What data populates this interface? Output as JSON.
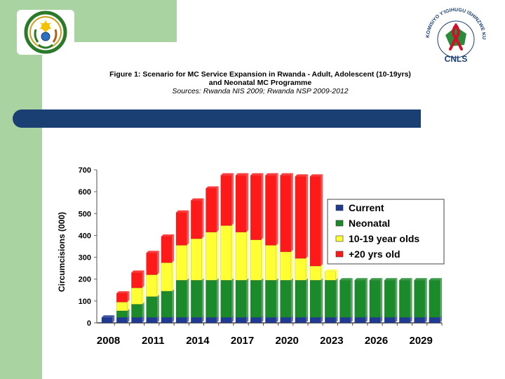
{
  "header": {
    "title_line1": "Figure 1: Scenario for MC Service Expansion in Rwanda - Adult, Adolescent (10-19yrs)",
    "title_line2": "and Neonatal MC Programme",
    "sources": "Sources: Rwanda NIS 2009; Rwanda NSP 2009-2012"
  },
  "logos": {
    "left": "rwanda-coat-of-arms",
    "right_text": "KOMISIYO Y'IGIHUGU ISHINZWE KURWANYA SIDA",
    "right_abbr": "CNLS"
  },
  "colors": {
    "current": "#1f3a93",
    "neonatal": "#1a8a2a",
    "adolescent": "#ffff33",
    "adult": "#ff1a1a",
    "band": "#1a3f73"
  },
  "chart_data": {
    "type": "bar",
    "stacked": true,
    "ylabel": "Circumcisions (000)",
    "ylim": [
      0,
      700
    ],
    "yticks": [
      0,
      100,
      200,
      300,
      400,
      500,
      600,
      700
    ],
    "xtick_labels": [
      "2008",
      "2011",
      "2014",
      "2017",
      "2020",
      "2023",
      "2026",
      "2029"
    ],
    "categories": [
      "2008",
      "2009",
      "2010",
      "2011",
      "2012",
      "2013",
      "2014",
      "2015",
      "2016",
      "2017",
      "2018",
      "2019",
      "2020",
      "2021",
      "2022",
      "2023",
      "2024",
      "2025",
      "2026",
      "2027",
      "2028",
      "2029",
      "2030"
    ],
    "legend_position": "right",
    "series": [
      {
        "name": "Current",
        "color": "#1f3a93",
        "values": [
          25,
          25,
          25,
          25,
          25,
          25,
          25,
          25,
          25,
          25,
          25,
          25,
          25,
          25,
          25,
          25,
          25,
          25,
          25,
          25,
          25,
          25,
          25
        ]
      },
      {
        "name": "Neonatal",
        "color": "#1a8a2a",
        "values": [
          0,
          30,
          60,
          95,
          120,
          170,
          170,
          170,
          170,
          170,
          170,
          170,
          170,
          170,
          170,
          170,
          170,
          170,
          170,
          170,
          170,
          170,
          170
        ]
      },
      {
        "name": "10-19 year olds",
        "color": "#ffff33",
        "values": [
          0,
          40,
          75,
          100,
          130,
          160,
          190,
          220,
          250,
          220,
          185,
          160,
          130,
          100,
          65,
          40,
          0,
          0,
          0,
          0,
          0,
          0,
          0
        ]
      },
      {
        "name": "+20 yrs old",
        "color": "#ff1a1a",
        "values": [
          0,
          40,
          70,
          100,
          120,
          150,
          175,
          200,
          230,
          260,
          295,
          320,
          350,
          375,
          410,
          0,
          0,
          0,
          0,
          0,
          0,
          0,
          0
        ]
      }
    ]
  }
}
